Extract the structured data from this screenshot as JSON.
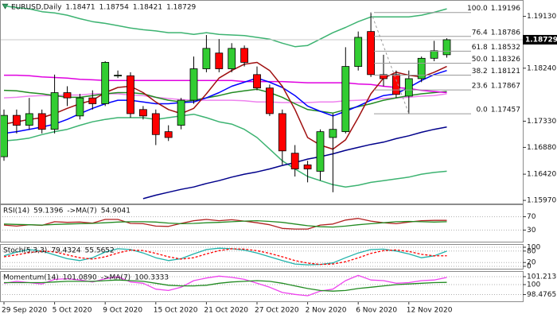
{
  "chart_data": [
    {
      "type": "candlestick",
      "title": "EURUSD,Daily",
      "categories": [
        "29 Sep 2020",
        null,
        null,
        null,
        "5 Oct 2020",
        null,
        null,
        null,
        "9 Oct 2020",
        null,
        null,
        null,
        "15 Oct 2020",
        null,
        null,
        null,
        "21 Oct 2020",
        null,
        null,
        null,
        "27 Oct 2020",
        null,
        null,
        null,
        "2 Nov 2020",
        null,
        null,
        null,
        "6 Nov 2020",
        null,
        null,
        null,
        "12 Nov 2020",
        null,
        null,
        null
      ],
      "open": [
        1.1672,
        1.1743,
        1.1726,
        1.1746,
        1.1719,
        1.1782,
        1.1742,
        1.1773,
        1.1763,
        1.1811,
        1.1811,
        1.1753,
        1.1746,
        1.1715,
        1.1726,
        1.1769,
        1.1823,
        1.185,
        1.1823,
        1.1858,
        1.1813,
        1.179,
        1.1746,
        1.1678,
        1.1658,
        1.1647,
        1.1705,
        1.1715,
        1.1827,
        1.1887,
        1.1813,
        1.1813,
        1.1776,
        1.1806,
        1.1841,
        1.18471
      ],
      "high": [
        1.1753,
        1.1753,
        1.1773,
        1.1753,
        1.1813,
        1.1793,
        1.178,
        1.1786,
        1.1836,
        1.182,
        1.1817,
        1.1759,
        1.1753,
        1.1726,
        1.1773,
        1.1844,
        1.1881,
        1.1874,
        1.1867,
        1.1863,
        1.1827,
        1.1796,
        1.1753,
        1.1692,
        1.1665,
        1.1719,
        1.1746,
        1.186,
        1.1887,
        1.192,
        1.1847,
        1.182,
        1.182,
        1.1844,
        1.1871,
        1.18754
      ],
      "low": [
        1.1665,
        1.1712,
        1.1719,
        1.1712,
        1.1712,
        1.1759,
        1.1736,
        1.1753,
        1.1759,
        1.1807,
        1.1739,
        1.1736,
        1.1692,
        1.1699,
        1.1719,
        1.1763,
        1.1817,
        1.1817,
        1.1817,
        1.1827,
        1.1786,
        1.1742,
        1.1658,
        1.1638,
        1.1628,
        1.1631,
        1.1611,
        1.1712,
        1.182,
        1.1809,
        1.1793,
        1.1773,
        1.1746,
        1.18,
        1.1836,
        1.18421
      ],
      "close": [
        1.1743,
        1.1726,
        1.1746,
        1.1719,
        1.1782,
        1.1773,
        1.1773,
        1.1763,
        1.1834,
        1.1812,
        1.1746,
        1.1742,
        1.171,
        1.1705,
        1.1769,
        1.1823,
        1.1858,
        1.1823,
        1.1858,
        1.1834,
        1.179,
        1.1746,
        1.1682,
        1.1651,
        1.1651,
        1.1715,
        1.1719,
        1.1827,
        1.1877,
        1.1813,
        1.1806,
        1.1779,
        1.1806,
        1.1841,
        1.1854,
        1.18729
      ],
      "up_color": "#32cd32",
      "down_color": "#ff0000",
      "ylim": [
        1.1593,
        1.1937
      ],
      "yticks": [
        {
          "value": 1.1913,
          "label": "1.19130"
        },
        {
          "value": 1.1824,
          "label": "1.18240"
        },
        {
          "value": 1.1733,
          "label": "1.17330"
        },
        {
          "value": 1.1688,
          "label": "1.16880"
        },
        {
          "value": 1.1642,
          "label": "1.16420"
        },
        {
          "value": 1.1597,
          "label": "1.15970"
        }
      ],
      "grid": false,
      "lines": [
        {
          "color": "#3cb371",
          "values": [
            1.1931,
            1.1928,
            1.1926,
            1.1921,
            1.1919,
            1.1915,
            1.1909,
            1.1904,
            1.1901,
            1.1897,
            1.1893,
            1.189,
            1.1888,
            1.1885,
            1.1885,
            1.1882,
            1.1885,
            1.1882,
            1.1881,
            1.188,
            1.1877,
            1.1874,
            1.1867,
            1.1861,
            1.1863,
            1.1874,
            1.1885,
            1.1894,
            1.1904,
            1.1912,
            1.1912,
            1.1912,
            1.1912,
            1.1915,
            1.192,
            1.1926
          ]
        },
        {
          "color": "#3cb371",
          "values": [
            1.1699,
            1.1701,
            1.1704,
            1.171,
            1.1715,
            1.1719,
            1.1726,
            1.1732,
            1.1736,
            1.1739,
            1.1739,
            1.1739,
            1.1736,
            1.1739,
            1.1742,
            1.1745,
            1.1739,
            1.1732,
            1.1728,
            1.1719,
            1.1705,
            1.1685,
            1.1665,
            1.1651,
            1.1638,
            1.1631,
            1.1624,
            1.162,
            1.1623,
            1.1628,
            1.1631,
            1.1634,
            1.1637,
            1.1642,
            1.1645,
            1.1647
          ]
        },
        {
          "color": "#ee82ee",
          "values": [
            1.1773,
            1.1774,
            1.1776,
            1.1777,
            1.1777,
            1.1778,
            1.1778,
            1.178,
            1.178,
            1.178,
            1.1778,
            1.1777,
            1.1774,
            1.1772,
            1.177,
            1.1769,
            1.1769,
            1.1769,
            1.1769,
            1.1768,
            1.1766,
            1.1766,
            1.1765,
            1.1765,
            1.1765,
            1.1766,
            1.1766,
            1.1768,
            1.1769,
            1.177,
            1.1772,
            1.1773,
            1.1774,
            1.1776,
            1.1777,
            1.178
          ]
        },
        {
          "color": "#228b22",
          "values": [
            1.1786,
            1.1785,
            1.1782,
            1.178,
            1.1777,
            1.1774,
            1.1774,
            1.1777,
            1.178,
            1.1782,
            1.1782,
            1.178,
            1.1774,
            1.1769,
            1.1766,
            1.1769,
            1.1773,
            1.1777,
            1.1782,
            1.1785,
            1.1788,
            1.1782,
            1.1774,
            1.1763,
            1.1753,
            1.175,
            1.1747,
            1.1753,
            1.1758,
            1.1763,
            1.1769,
            1.1773,
            1.1777,
            1.178,
            1.1782,
            1.1784
          ]
        },
        {
          "color": "#e000e0",
          "values": [
            1.1812,
            1.1812,
            1.1811,
            1.1809,
            1.1808,
            1.1807,
            1.1805,
            1.1804,
            1.1803,
            1.1803,
            1.1803,
            1.1803,
            1.1803,
            1.1803,
            1.1803,
            1.1803,
            1.1803,
            1.1803,
            1.1803,
            1.1801,
            1.1801,
            1.1801,
            1.1801,
            1.18,
            1.1799,
            1.1799,
            1.1799,
            1.1799,
            1.1797,
            1.1796,
            1.1793,
            1.1791,
            1.1789,
            1.1786,
            1.1784,
            1.1782
          ]
        },
        {
          "color": "#00008b",
          "values": [
            null,
            null,
            null,
            null,
            null,
            null,
            null,
            null,
            null,
            null,
            null,
            1.16,
            1.1606,
            1.1611,
            1.1616,
            1.162,
            1.1626,
            1.1631,
            1.1637,
            1.1642,
            1.1646,
            1.1651,
            1.1657,
            1.1662,
            1.1668,
            1.1672,
            1.1677,
            1.1683,
            1.1688,
            1.1693,
            1.1697,
            1.1703,
            1.1708,
            1.1714,
            1.1719,
            1.1723
          ]
        },
        {
          "color": "#0000ff",
          "values": [
            1.1712,
            1.1715,
            1.1719,
            1.1723,
            1.1728,
            1.1736,
            1.1746,
            1.1755,
            1.1763,
            1.1769,
            1.1769,
            1.1766,
            1.1763,
            1.1763,
            1.1765,
            1.1766,
            1.1773,
            1.1782,
            1.1793,
            1.18,
            1.1807,
            1.18,
            1.1791,
            1.1777,
            1.1759,
            1.175,
            1.1742,
            1.175,
            1.1759,
            1.1769,
            1.1777,
            1.178,
            1.1791,
            1.1803,
            1.1813,
            1.182
          ]
        },
        {
          "color": "#a01010",
          "values": [
            1.1728,
            1.1732,
            1.1736,
            1.1739,
            1.1746,
            1.1755,
            1.1763,
            1.1769,
            1.1782,
            1.1791,
            1.1793,
            1.1782,
            1.1766,
            1.1753,
            1.1746,
            1.1755,
            1.178,
            1.1807,
            1.182,
            1.1831,
            1.1834,
            1.182,
            1.1793,
            1.1753,
            1.1705,
            1.1692,
            1.1685,
            1.1701,
            1.1739,
            1.178,
            1.1807,
            1.1817,
            1.1812,
            1.1809,
            1.1817,
            1.1827
          ]
        }
      ],
      "fibonacci": [
        {
          "level": "100.0",
          "price": 1.19196
        },
        {
          "level": "76.4",
          "price": 1.18786
        },
        {
          "level": "61.8",
          "price": 1.18532
        },
        {
          "level": "50.0",
          "price": 1.18326
        },
        {
          "level": "38.2",
          "price": 1.18121
        },
        {
          "level": "23.6",
          "price": 1.17867
        },
        {
          "level": "0.0",
          "price": 1.17457
        }
      ]
    },
    {
      "type": "line",
      "ylim": [
        0,
        100
      ],
      "yticks": [
        70,
        30
      ],
      "grid": true,
      "series": [
        {
          "name": "RSI(14)",
          "color": "#b22222",
          "values": [
            45,
            42,
            46,
            44,
            55,
            53,
            54,
            51,
            62,
            62,
            50,
            49,
            42,
            41,
            50,
            58,
            62,
            58,
            61,
            57,
            52,
            46,
            35,
            33,
            33,
            45,
            48,
            60,
            65,
            57,
            52,
            49,
            54,
            58,
            59,
            59.1396
          ]
        },
        {
          "name": "->MA(7)",
          "color": "#228b22",
          "values": [
            48,
            47,
            46,
            45,
            47,
            48,
            49,
            50,
            52,
            54,
            55,
            55,
            54,
            51,
            49,
            50,
            52,
            53,
            55,
            57,
            58,
            56,
            53,
            48,
            43,
            40,
            39,
            42,
            46,
            49,
            52,
            55,
            56,
            55,
            54,
            54.9041
          ]
        }
      ]
    },
    {
      "type": "line",
      "ylim": [
        0,
        100
      ],
      "yticks": [
        100,
        80,
        20,
        0
      ],
      "grid": true,
      "series": [
        {
          "name": "Stoch(5,3,3)",
          "color": "#20b2aa",
          "values": [
            55,
            75,
            88,
            80,
            60,
            40,
            30,
            45,
            75,
            92,
            88,
            70,
            45,
            30,
            40,
            65,
            88,
            95,
            92,
            85,
            70,
            50,
            30,
            12,
            8,
            10,
            18,
            45,
            70,
            88,
            90,
            80,
            65,
            45,
            55,
            79.4324
          ]
        },
        {
          "color": "#ff0000",
          "dashed": true,
          "values": [
            50,
            60,
            72,
            80,
            76,
            60,
            45,
            38,
            50,
            70,
            85,
            83,
            68,
            50,
            38,
            45,
            65,
            82,
            92,
            90,
            82,
            68,
            50,
            30,
            17,
            10,
            12,
            24,
            44,
            68,
            82,
            86,
            78,
            63,
            55,
            55.5652
          ]
        }
      ]
    },
    {
      "type": "line",
      "ylim": [
        97.57,
        101.94
      ],
      "yticks": [
        101.2136,
        100,
        98.4765
      ],
      "grid": true,
      "series": [
        {
          "name": "Momentum(14)",
          "color": "#ee44ee",
          "values": [
            100.2,
            100.5,
            100.3,
            100.1,
            100.8,
            100.9,
            100.7,
            100.4,
            100.9,
            101.2,
            100.4,
            100.2,
            99.3,
            99.1,
            99.6,
            100.6,
            101.0,
            101.3,
            101.1,
            100.8,
            100.2,
            99.6,
            98.8,
            98.5,
            98.3,
            99.0,
            99.3,
            100.6,
            101.4,
            100.7,
            100.6,
            100.2,
            100.3,
            100.6,
            100.7,
            101.089
          ],
          "value_labels": [
            null,
            null,
            null,
            null,
            null,
            null,
            null,
            null,
            null,
            null,
            null,
            null,
            null,
            null,
            null,
            null,
            null,
            null,
            null,
            null,
            null,
            null,
            null,
            null,
            null,
            null,
            null,
            null,
            null,
            null,
            null,
            null,
            null,
            null,
            null,
            "101.0890"
          ]
        },
        {
          "name": "->MA(7)",
          "color": "#228b22",
          "values": [
            100.3,
            100.3,
            100.3,
            100.3,
            100.4,
            100.5,
            100.5,
            100.5,
            100.6,
            100.7,
            100.6,
            100.5,
            100.2,
            99.9,
            99.8,
            99.8,
            99.9,
            100.2,
            100.4,
            100.5,
            100.6,
            100.5,
            100.2,
            99.8,
            99.4,
            99.1,
            99.0,
            99.1,
            99.4,
            99.6,
            99.8,
            100.0,
            100.1,
            100.2,
            100.3,
            100.3333
          ]
        }
      ]
    }
  ]
}
